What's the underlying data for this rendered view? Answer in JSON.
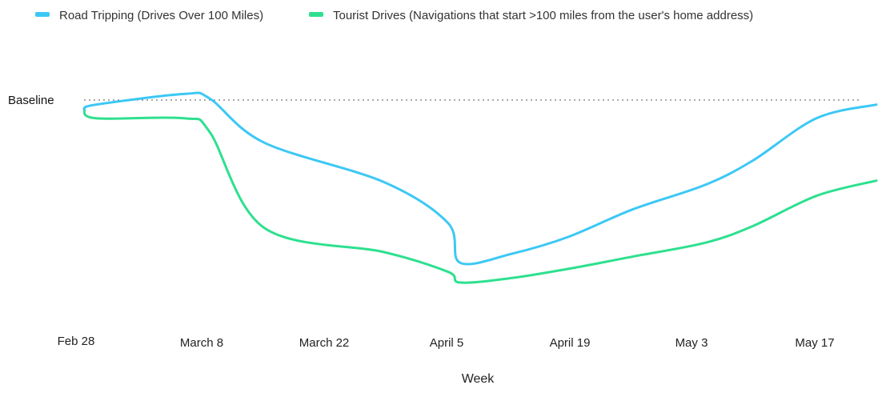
{
  "chart_data": {
    "type": "line",
    "title": "",
    "xlabel": "Week",
    "ylabel": "",
    "baseline_label": "Baseline",
    "grid": false,
    "legend_position": "top-left",
    "x_ticks": [
      "Feb 28",
      "March 8",
      "March 22",
      "April 5",
      "April 19",
      "May 3",
      "May 17"
    ],
    "x": [
      "Feb 28",
      "March 1",
      "March 6",
      "March 8",
      "March 15",
      "March 22",
      "March 29",
      "April 5",
      "April 12",
      "April 19",
      "April 26",
      "May 3",
      "May 10",
      "May 17",
      "May 24"
    ],
    "series": [
      {
        "name": "Road Tripping (Drives Over 100 Miles)",
        "color": "#3cc8f5",
        "values": [
          -0.06,
          -0.03,
          0.04,
          0.01,
          -0.28,
          -0.54,
          -0.81,
          -1.07,
          -1.01,
          -0.9,
          -0.72,
          -0.56,
          -0.4,
          -0.12,
          -0.03
        ]
      },
      {
        "name": "Tourist Drives (Navigations that start >100 miles from the user's home address)",
        "color": "#2ee08f",
        "values": [
          -0.06,
          -0.12,
          -0.12,
          -0.21,
          -0.84,
          -1.0,
          -1.13,
          -1.2,
          -1.17,
          -1.11,
          -1.03,
          -0.94,
          -0.83,
          -0.63,
          -0.53
        ]
      }
    ]
  }
}
